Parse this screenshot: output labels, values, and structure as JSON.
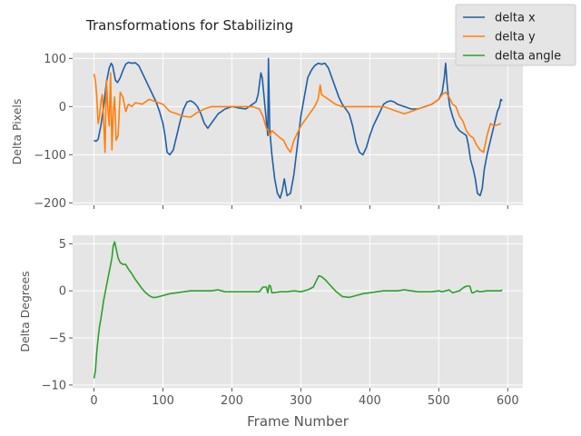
{
  "chart_data": [
    {
      "type": "line",
      "title": "Transformations for Stabilizing",
      "ylabel": "Delta Pixels",
      "xlabel": "",
      "xlim": [
        -31,
        622
      ],
      "ylim": [
        -205,
        112
      ],
      "xticks": [
        0,
        100,
        200,
        300,
        400,
        500,
        600
      ],
      "yticks": [
        -200,
        -100,
        0,
        100
      ],
      "ytick_labels": [
        "−200",
        "−100",
        "0",
        "100"
      ],
      "grid": true,
      "legend_position": "top-right",
      "series": [
        {
          "name": "delta x",
          "color": "#1f5fa6",
          "x": [
            0,
            3,
            6,
            10,
            14,
            18,
            22,
            25,
            27,
            29,
            31,
            34,
            38,
            42,
            46,
            50,
            55,
            60,
            65,
            70,
            75,
            80,
            85,
            90,
            95,
            100,
            103,
            106,
            110,
            115,
            120,
            125,
            130,
            135,
            140,
            145,
            150,
            155,
            160,
            165,
            170,
            180,
            190,
            200,
            210,
            220,
            230,
            235,
            238,
            242,
            244,
            246,
            248,
            250,
            252,
            253,
            255,
            258,
            262,
            266,
            270,
            273,
            276,
            280,
            285,
            290,
            295,
            300,
            305,
            310,
            315,
            320,
            325,
            330,
            335,
            340,
            345,
            350,
            355,
            360,
            365,
            370,
            375,
            380,
            385,
            390,
            395,
            400,
            405,
            410,
            415,
            420,
            425,
            430,
            435,
            440,
            450,
            460,
            470,
            480,
            490,
            500,
            505,
            508,
            510,
            512,
            514,
            516,
            520,
            525,
            530,
            535,
            540,
            543,
            546,
            550,
            553,
            556,
            560,
            563,
            566,
            570,
            575,
            580,
            585,
            588,
            590,
            592
          ],
          "values": [
            -70,
            -72,
            -68,
            -40,
            0,
            50,
            80,
            90,
            85,
            70,
            55,
            50,
            60,
            75,
            88,
            92,
            90,
            91,
            85,
            70,
            55,
            40,
            25,
            10,
            -10,
            -35,
            -60,
            -95,
            -100,
            -90,
            -60,
            -30,
            -5,
            10,
            12,
            8,
            0,
            -15,
            -35,
            -45,
            -35,
            -15,
            -5,
            0,
            -3,
            -5,
            5,
            10,
            25,
            70,
            60,
            30,
            0,
            -30,
            -60,
            100,
            -50,
            -100,
            -150,
            -180,
            -190,
            -175,
            -150,
            -185,
            -180,
            -140,
            -80,
            -20,
            20,
            60,
            75,
            85,
            90,
            88,
            90,
            80,
            60,
            40,
            20,
            5,
            -5,
            -15,
            -40,
            -75,
            -95,
            -100,
            -85,
            -60,
            -40,
            -25,
            -10,
            5,
            10,
            12,
            10,
            5,
            0,
            -5,
            -5,
            0,
            5,
            15,
            30,
            60,
            90,
            50,
            20,
            0,
            -20,
            -40,
            -50,
            -55,
            -60,
            -80,
            -110,
            -130,
            -150,
            -180,
            -185,
            -170,
            -130,
            -100,
            -70,
            -40,
            -10,
            0,
            15,
            12
          ]
        },
        {
          "name": "delta y",
          "color": "#ff7f0e",
          "x": [
            0,
            2,
            4,
            6,
            8,
            10,
            12,
            14,
            16,
            18,
            20,
            22,
            24,
            26,
            28,
            30,
            32,
            35,
            38,
            42,
            46,
            50,
            55,
            60,
            70,
            80,
            90,
            100,
            110,
            120,
            130,
            140,
            150,
            160,
            170,
            180,
            190,
            200,
            210,
            220,
            230,
            240,
            245,
            250,
            253,
            255,
            258,
            262,
            266,
            270,
            275,
            280,
            285,
            290,
            300,
            310,
            320,
            325,
            328,
            330,
            335,
            340,
            350,
            360,
            370,
            380,
            390,
            400,
            410,
            420,
            430,
            440,
            450,
            460,
            470,
            480,
            490,
            500,
            505,
            510,
            515,
            520,
            525,
            530,
            535,
            540,
            545,
            550,
            555,
            560,
            565,
            570,
            575,
            580,
            585,
            590
          ],
          "values": [
            68,
            55,
            20,
            -35,
            -20,
            10,
            25,
            -30,
            -95,
            55,
            0,
            -40,
            70,
            -90,
            -10,
            20,
            -70,
            -60,
            30,
            20,
            -10,
            5,
            0,
            8,
            5,
            15,
            10,
            5,
            -10,
            -15,
            -20,
            -22,
            -12,
            -5,
            0,
            0,
            0,
            0,
            0,
            0,
            0,
            -5,
            -20,
            -45,
            -50,
            -60,
            -50,
            -55,
            -60,
            -65,
            -70,
            -85,
            -95,
            -70,
            -40,
            -20,
            0,
            15,
            45,
            25,
            20,
            15,
            5,
            0,
            0,
            0,
            0,
            0,
            0,
            0,
            -5,
            -10,
            -15,
            -10,
            -5,
            0,
            5,
            15,
            25,
            30,
            20,
            5,
            0,
            -20,
            -30,
            -50,
            -60,
            -65,
            -80,
            -90,
            -95,
            -60,
            -35,
            -40,
            -38,
            -35
          ]
        }
      ]
    },
    {
      "type": "line",
      "title": "",
      "ylabel": "Delta Degrees",
      "xlabel": "Frame Number",
      "xlim": [
        -31,
        622
      ],
      "ylim": [
        -10.3,
        5.9
      ],
      "xticks": [
        0,
        100,
        200,
        300,
        400,
        500,
        600
      ],
      "xtick_labels": [
        "0",
        "100",
        "200",
        "300",
        "400",
        "500",
        "600"
      ],
      "yticks": [
        -10,
        -5,
        0,
        5
      ],
      "ytick_labels": [
        "−10",
        "−5",
        "0",
        "5"
      ],
      "grid": true,
      "series": [
        {
          "name": "delta angle",
          "color": "#2ca02c",
          "x": [
            0,
            2,
            4,
            6,
            8,
            10,
            14,
            18,
            22,
            26,
            28,
            30,
            32,
            35,
            38,
            42,
            46,
            50,
            55,
            60,
            65,
            70,
            75,
            80,
            85,
            90,
            100,
            110,
            120,
            130,
            140,
            150,
            160,
            170,
            180,
            190,
            200,
            210,
            220,
            230,
            240,
            245,
            250,
            252,
            254,
            256,
            258,
            260,
            270,
            280,
            290,
            300,
            310,
            318,
            322,
            326,
            330,
            335,
            340,
            350,
            360,
            370,
            380,
            390,
            400,
            410,
            420,
            430,
            440,
            450,
            460,
            470,
            480,
            490,
            500,
            505,
            510,
            515,
            520,
            525,
            530,
            535,
            540,
            545,
            548,
            550,
            555,
            560,
            570,
            580,
            590,
            592
          ],
          "values": [
            -9.3,
            -8.5,
            -6.5,
            -5.0,
            -3.8,
            -3.0,
            -1.0,
            0.5,
            2.0,
            3.5,
            4.8,
            5.2,
            4.5,
            3.5,
            3.0,
            2.8,
            2.8,
            2.3,
            1.8,
            1.2,
            0.7,
            0.2,
            -0.2,
            -0.5,
            -0.7,
            -0.7,
            -0.5,
            -0.3,
            -0.2,
            -0.1,
            0.0,
            0.0,
            0.0,
            0.0,
            0.1,
            -0.1,
            -0.1,
            -0.1,
            -0.1,
            -0.1,
            -0.1,
            0.4,
            0.4,
            -0.2,
            0.6,
            0.5,
            -0.2,
            -0.2,
            -0.1,
            -0.1,
            0.0,
            -0.1,
            0.1,
            0.4,
            1.0,
            1.6,
            1.5,
            1.2,
            0.8,
            0.0,
            -0.6,
            -0.7,
            -0.5,
            -0.3,
            -0.2,
            -0.1,
            0.0,
            0.0,
            0.0,
            0.1,
            0.0,
            -0.1,
            -0.1,
            -0.1,
            0.0,
            -0.1,
            0.0,
            0.1,
            -0.2,
            -0.1,
            0.0,
            0.3,
            0.5,
            0.5,
            -0.2,
            -0.2,
            0.0,
            -0.1,
            0.0,
            0.0,
            0.0,
            0.1
          ]
        }
      ]
    }
  ]
}
